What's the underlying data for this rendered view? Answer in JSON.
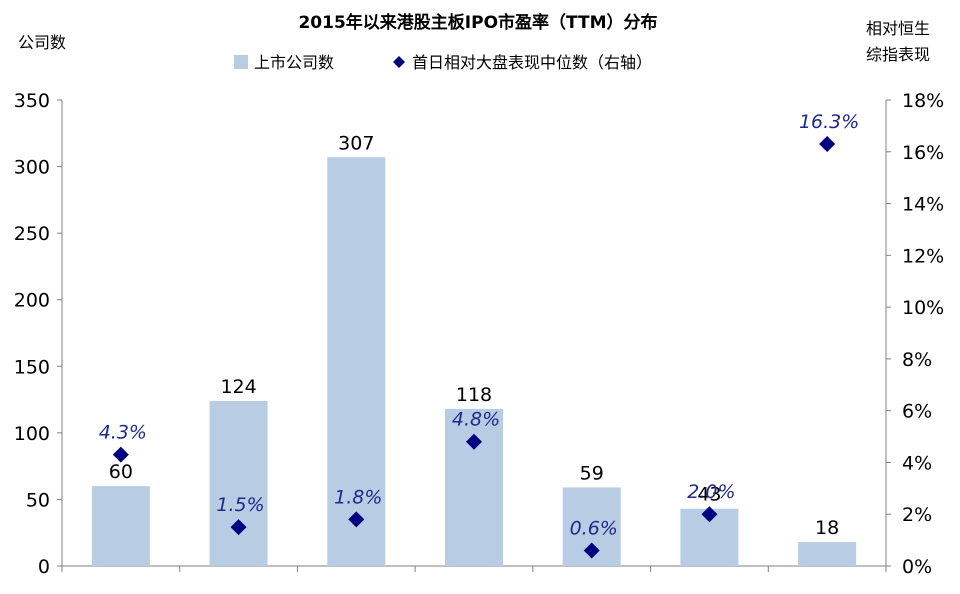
{
  "chart_data": {
    "type": "bar",
    "title": "2015年以来港股主板IPO市盈率（TTM）分布",
    "ylabel": "公司数",
    "y2label_line1": "相对恒生",
    "y2label_line2": "综指表现",
    "ylim": [
      0,
      350
    ],
    "y2lim": [
      0,
      0.18
    ],
    "yticks": [
      "0",
      "50",
      "100",
      "150",
      "200",
      "250",
      "300",
      "350"
    ],
    "y2ticks": [
      "0%",
      "2%",
      "4%",
      "6%",
      "8%",
      "10%",
      "12%",
      "14%",
      "16%",
      "18%"
    ],
    "legend_position": "top",
    "grid": false,
    "series": [
      {
        "name": "上市公司数",
        "type": "bar",
        "axis": "left",
        "color": "#b8cce4",
        "values": [
          60,
          124,
          307,
          118,
          59,
          43,
          18
        ],
        "labels": [
          "60",
          "124",
          "307",
          "118",
          "59",
          "43",
          "18"
        ]
      },
      {
        "name": "首日相对大盘表现中位数（右轴）",
        "type": "scatter",
        "marker": "diamond",
        "axis": "right",
        "color": "#000080",
        "values": [
          0.043,
          0.015,
          0.018,
          0.048,
          0.006,
          0.02,
          0.163
        ],
        "labels": [
          "4.3%",
          "1.5%",
          "1.8%",
          "4.8%",
          "0.6%",
          "2.0%",
          "16.3%"
        ]
      }
    ]
  }
}
